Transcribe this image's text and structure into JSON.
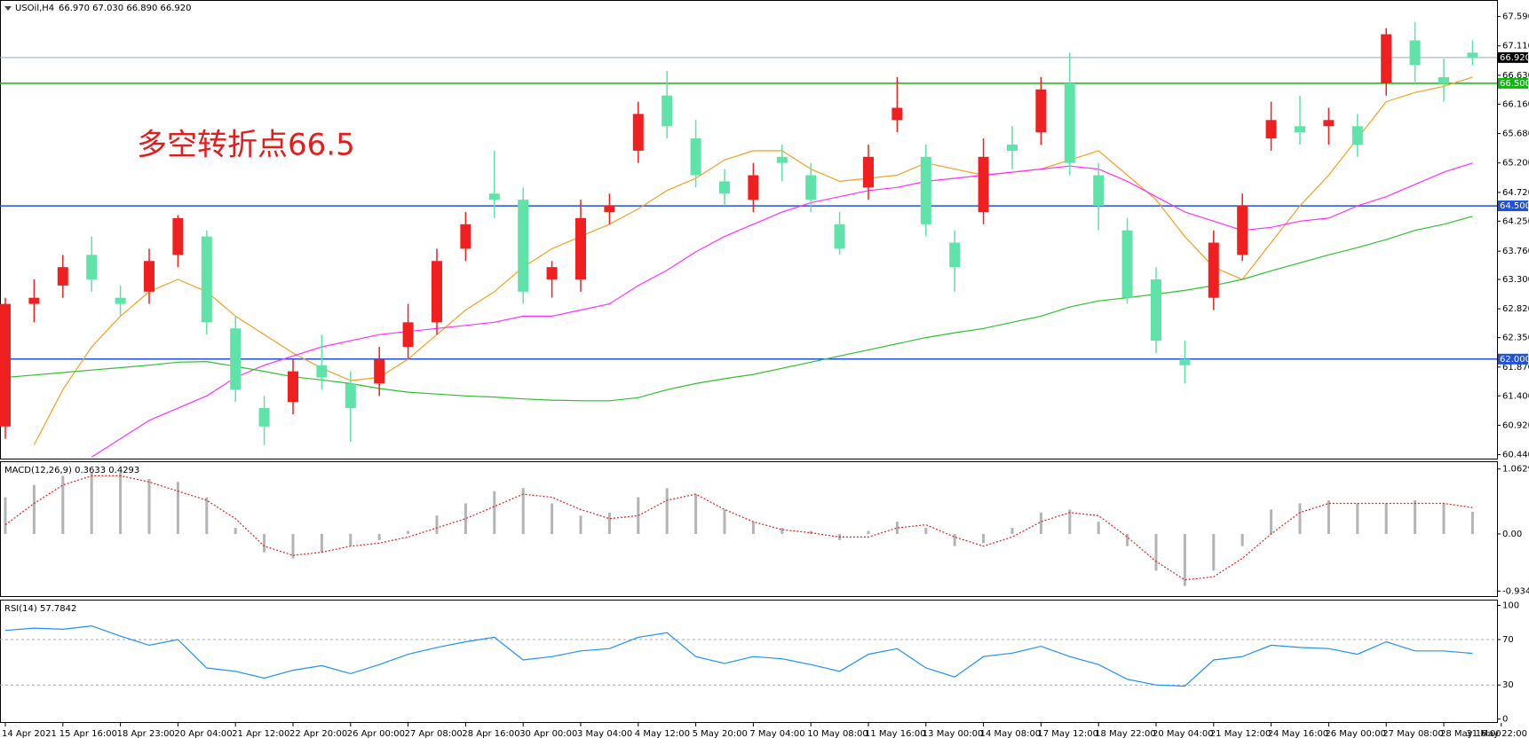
{
  "header": {
    "symbol": "USOil,H4",
    "ohlc": "66.970 67.030 66.890 66.920"
  },
  "annotation": "多空转折点66.5",
  "chart_data": [
    {
      "type": "candlestick",
      "categories": [
        "14 Apr 2021",
        null,
        "15 Apr 16:00",
        null,
        "18 Apr 23:00",
        null,
        "20 Apr 04:00",
        null,
        "21 Apr 12:00",
        null,
        "22 Apr 20:00",
        null,
        "26 Apr 00:00",
        null,
        "27 Apr 08:00",
        null,
        "28 Apr 16:00",
        null,
        "30 Apr 00:00",
        null,
        "3 May 04:00",
        null,
        "4 May 12:00",
        null,
        "5 May 20:00",
        null,
        "7 May 04:00",
        null,
        "10 May 08:00",
        null,
        "11 May 16:00",
        null,
        "13 May 00:00",
        null,
        "14 May 08:00",
        null,
        "17 May 12:00",
        null,
        "18 May 22:00",
        null,
        "20 May 04:00",
        null,
        "21 May 12:00",
        null,
        "24 May 16:00",
        null,
        "26 May 00:00",
        null,
        "27 May 08:00",
        null,
        "28 May 16:00",
        null,
        "31 May 22:00"
      ],
      "open": [
        60.9,
        62.9,
        63.2,
        63.7,
        63.0,
        63.1,
        63.7,
        64.0,
        62.5,
        61.2,
        61.3,
        61.9,
        61.6,
        61.6,
        62.2,
        62.6,
        63.8,
        64.7,
        64.6,
        63.3,
        63.3,
        64.4,
        65.4,
        66.3,
        65.6,
        64.9,
        64.6,
        65.3,
        65.0,
        64.2,
        64.8,
        65.9,
        65.3,
        63.9,
        64.4,
        65.5,
        65.7,
        66.5,
        65.0,
        64.1,
        63.3,
        62.0,
        63.0,
        63.7,
        65.6,
        65.8,
        65.8,
        65.8,
        66.5,
        67.2,
        66.6,
        67.0,
        null
      ],
      "high": [
        63.0,
        63.3,
        63.7,
        64.0,
        63.2,
        63.8,
        64.35,
        64.1,
        62.7,
        61.4,
        62.0,
        62.4,
        61.8,
        62.2,
        62.9,
        63.8,
        64.4,
        65.4,
        64.8,
        63.6,
        64.6,
        64.7,
        66.2,
        66.7,
        65.9,
        65.1,
        65.2,
        65.5,
        65.2,
        64.4,
        65.5,
        66.6,
        65.5,
        64.1,
        65.6,
        65.8,
        66.6,
        67.0,
        65.2,
        64.3,
        63.5,
        62.3,
        64.1,
        64.7,
        66.2,
        66.3,
        66.1,
        66.0,
        67.4,
        67.5,
        66.9,
        67.2,
        null
      ],
      "low": [
        60.7,
        62.6,
        63.0,
        63.1,
        62.7,
        62.9,
        63.5,
        62.4,
        61.3,
        60.6,
        61.1,
        61.5,
        60.65,
        61.4,
        62.0,
        62.4,
        63.6,
        64.3,
        62.9,
        63.0,
        63.1,
        64.2,
        65.2,
        65.6,
        64.8,
        64.5,
        64.4,
        64.9,
        64.4,
        63.7,
        64.6,
        65.7,
        64.0,
        63.1,
        64.2,
        65.1,
        65.5,
        65.0,
        64.1,
        62.9,
        62.1,
        61.6,
        62.8,
        63.6,
        65.4,
        65.5,
        65.5,
        65.3,
        66.3,
        66.5,
        66.2,
        66.8,
        null
      ],
      "close": [
        62.9,
        63.0,
        63.5,
        63.3,
        62.9,
        63.6,
        64.3,
        62.6,
        61.5,
        60.9,
        61.8,
        61.7,
        61.2,
        62.0,
        62.6,
        63.6,
        64.2,
        64.6,
        63.1,
        63.5,
        64.3,
        64.5,
        66.0,
        65.8,
        65.0,
        64.7,
        65.0,
        65.2,
        64.6,
        63.8,
        65.3,
        66.1,
        64.2,
        63.5,
        65.3,
        65.4,
        66.4,
        65.2,
        64.5,
        63.0,
        62.3,
        61.9,
        63.9,
        64.5,
        65.9,
        65.7,
        65.9,
        65.5,
        67.3,
        66.8,
        66.5,
        66.92,
        null
      ],
      "up_color": "#f02020",
      "down_color": "#5fe3a8",
      "series": [
        {
          "color": "#f5a020",
          "values": [
            null,
            60.6,
            61.5,
            62.2,
            62.7,
            63.1,
            63.3,
            63.1,
            62.7,
            62.4,
            62.1,
            61.85,
            61.65,
            61.7,
            62.0,
            62.4,
            62.8,
            63.1,
            63.5,
            63.8,
            64.0,
            64.2,
            64.45,
            64.75,
            64.95,
            65.25,
            65.4,
            65.4,
            65.1,
            64.9,
            64.95,
            65.0,
            65.2,
            65.1,
            65.0,
            65.05,
            65.1,
            65.25,
            65.4,
            65.0,
            64.6,
            64.0,
            63.5,
            63.3,
            63.9,
            64.5,
            65.0,
            65.6,
            66.2,
            66.35,
            66.45,
            66.6,
            null
          ]
        },
        {
          "color": "#ff30ff",
          "values": [
            null,
            null,
            null,
            60.4,
            60.7,
            61.0,
            61.2,
            61.4,
            61.7,
            61.9,
            62.05,
            62.2,
            62.3,
            62.4,
            62.45,
            62.5,
            62.55,
            62.6,
            62.7,
            62.7,
            62.8,
            62.9,
            63.2,
            63.45,
            63.75,
            64.0,
            64.2,
            64.4,
            64.55,
            64.65,
            64.75,
            64.8,
            64.9,
            64.95,
            65.0,
            65.05,
            65.1,
            65.15,
            65.1,
            64.9,
            64.65,
            64.4,
            64.25,
            64.1,
            64.15,
            64.25,
            64.3,
            64.5,
            64.65,
            64.85,
            65.05,
            65.2,
            null
          ]
        },
        {
          "color": "#30c030",
          "values": [
            61.7,
            61.74,
            61.78,
            61.82,
            61.86,
            61.9,
            61.95,
            61.96,
            61.88,
            61.8,
            61.71,
            61.66,
            61.6,
            61.52,
            61.46,
            61.43,
            61.4,
            61.38,
            61.35,
            61.33,
            61.32,
            61.32,
            61.37,
            61.5,
            61.6,
            61.68,
            61.75,
            61.85,
            61.95,
            62.05,
            62.15,
            62.25,
            62.35,
            62.43,
            62.5,
            62.6,
            62.7,
            62.85,
            62.95,
            63.0,
            63.06,
            63.12,
            63.2,
            63.3,
            63.44,
            63.57,
            63.7,
            63.82,
            63.95,
            64.1,
            64.2,
            64.33,
            null
          ]
        }
      ],
      "levels": [
        {
          "value": 66.5,
          "label": "66.500",
          "color": "#00c000"
        },
        {
          "value": 64.5,
          "label": "64.500",
          "color": "#2050e0"
        },
        {
          "value": 62.0,
          "label": "62.000",
          "color": "#2050e0"
        }
      ],
      "last": {
        "value": 66.92,
        "label": "66.920",
        "color": "#9aa4b8"
      },
      "ylim": [
        60.376,
        67.83
      ],
      "yticks": [
        {
          "value": 67.59,
          "label": "67.590"
        },
        {
          "value": 67.11,
          "label": "67.110"
        },
        {
          "value": 66.63,
          "label": "66.630"
        },
        {
          "value": 66.16,
          "label": "66.160"
        },
        {
          "value": 65.68,
          "label": "65.680"
        },
        {
          "value": 65.2,
          "label": "65.200"
        },
        {
          "value": 64.72,
          "label": "64.720"
        },
        {
          "value": 64.25,
          "label": "64.250"
        },
        {
          "value": 63.76,
          "label": "63.760"
        },
        {
          "value": 63.3,
          "label": "63.300"
        },
        {
          "value": 62.82,
          "label": "62.820"
        },
        {
          "value": 62.35,
          "label": "62.350"
        },
        {
          "value": 61.87,
          "label": "61.870"
        },
        {
          "value": 61.4,
          "label": "61.400"
        },
        {
          "value": 60.92,
          "label": "60.920"
        },
        {
          "value": 60.44,
          "label": "60.440"
        }
      ]
    },
    {
      "type": "macd",
      "title": "MACD(12,26,9) 0.3633 0.4293",
      "series": [
        {
          "type": "bar",
          "color": "#b4b4b4",
          "values": [
            0.6,
            0.8,
            0.95,
            1.0,
            1.0,
            0.9,
            0.85,
            0.6,
            0.1,
            -0.3,
            -0.4,
            -0.3,
            -0.2,
            -0.1,
            0.05,
            0.3,
            0.5,
            0.7,
            0.75,
            0.5,
            0.3,
            0.35,
            0.6,
            0.75,
            0.65,
            0.4,
            0.2,
            0.1,
            0.05,
            -0.1,
            0.05,
            0.2,
            0.1,
            -0.2,
            -0.15,
            0.1,
            0.35,
            0.4,
            0.2,
            -0.2,
            -0.6,
            -0.85,
            -0.6,
            -0.2,
            0.4,
            0.5,
            0.55,
            0.5,
            0.5,
            0.55,
            0.5,
            0.3633,
            null
          ]
        },
        {
          "type": "line",
          "color": "#e02020",
          "values": [
            0.15,
            0.5,
            0.8,
            0.95,
            0.95,
            0.85,
            0.7,
            0.55,
            0.25,
            -0.2,
            -0.35,
            -0.3,
            -0.2,
            -0.15,
            -0.05,
            0.1,
            0.25,
            0.45,
            0.65,
            0.6,
            0.4,
            0.25,
            0.3,
            0.55,
            0.65,
            0.4,
            0.2,
            0.07,
            0.02,
            -0.05,
            -0.05,
            0.1,
            0.15,
            -0.05,
            -0.2,
            -0.05,
            0.2,
            0.35,
            0.3,
            -0.05,
            -0.45,
            -0.75,
            -0.7,
            -0.4,
            0.0,
            0.35,
            0.5,
            0.5,
            0.5,
            0.5,
            0.5,
            0.4293,
            null
          ]
        }
      ],
      "ylim": [
        -1.016,
        1.174
      ],
      "yticks": [
        1.0629,
        {
          "value": 0,
          "label": "0.00"
        },
        -0.9342
      ]
    },
    {
      "type": "rsi",
      "title": "RSI(14) 57.7842",
      "series": [
        {
          "color": "#1e90ff",
          "values": [
            78,
            80,
            79,
            82,
            73,
            65,
            70,
            45,
            42,
            36,
            43,
            47,
            40,
            48,
            57,
            63,
            68,
            72,
            52,
            55,
            60,
            62,
            72,
            76,
            55,
            49,
            55,
            53,
            48,
            42,
            57,
            62,
            45,
            37,
            55,
            58,
            64,
            55,
            48,
            35,
            30,
            29,
            52,
            55,
            65,
            63,
            62,
            57,
            68,
            60,
            60,
            57.7842,
            null
          ]
        }
      ],
      "levels": [
        70,
        30
      ],
      "ylim": [
        -2.6,
        104.3
      ],
      "yticks": [
        100,
        70,
        30,
        0
      ]
    }
  ]
}
